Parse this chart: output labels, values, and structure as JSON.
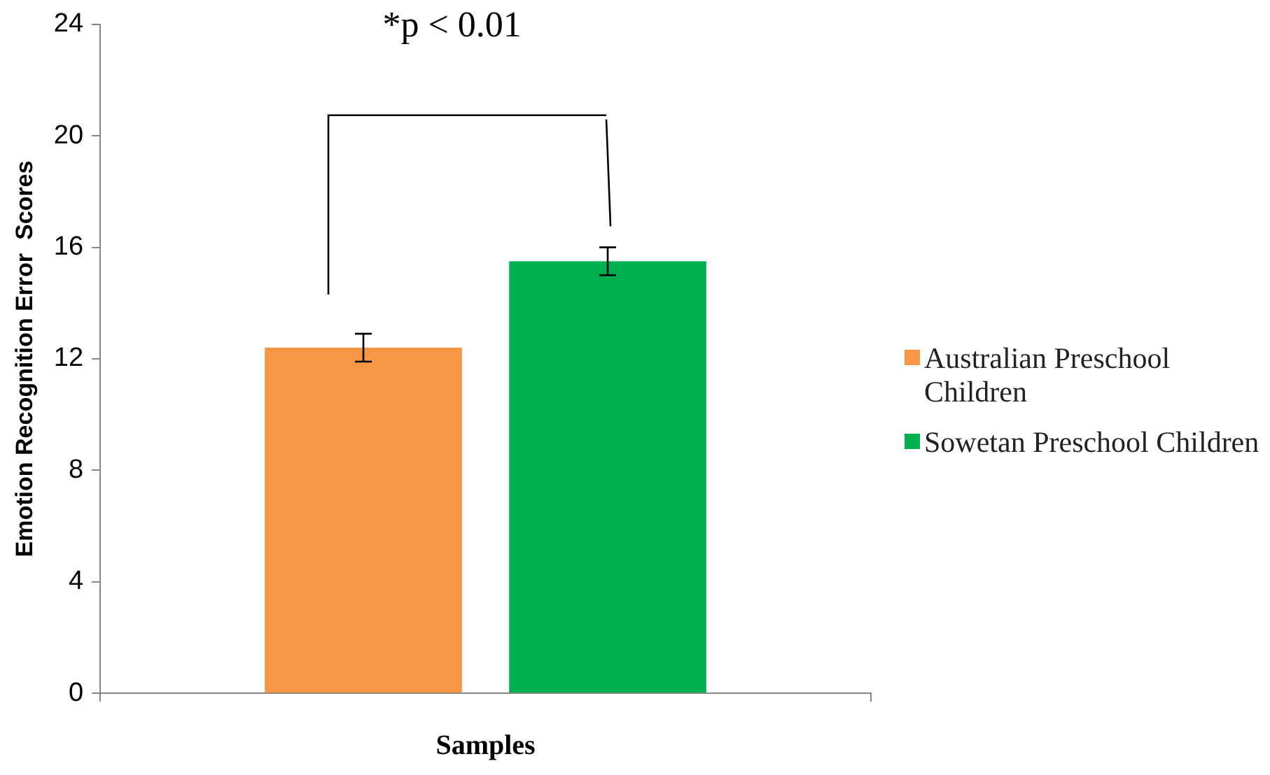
{
  "chart_data": {
    "type": "bar",
    "xlabel": "Samples",
    "ylabel": "Emotion Recognition Error  Scores",
    "categories": [
      null
    ],
    "series": [
      {
        "name": "Australian Preschool Children",
        "color": "#f79646",
        "values": [
          12.4
        ],
        "errors": [
          0.5
        ]
      },
      {
        "name": "Sowetan Preschool Children",
        "color": "#00b050",
        "values": [
          15.5
        ],
        "errors": [
          0.5
        ]
      }
    ],
    "ylim": [
      0,
      24
    ],
    "yticks": [
      0,
      4,
      8,
      12,
      16,
      20,
      24
    ],
    "grid": false,
    "legend": "right",
    "annotations": [
      "*p < 0.01"
    ]
  }
}
